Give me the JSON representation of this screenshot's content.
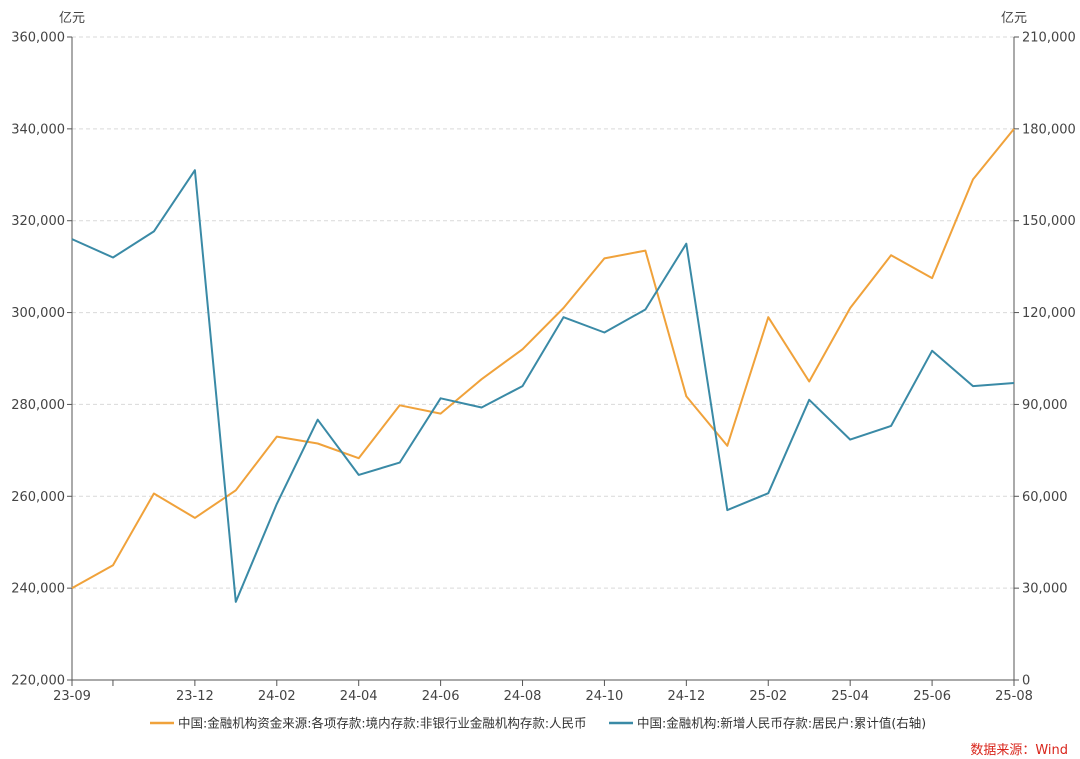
{
  "chart_data": {
    "type": "line",
    "y_unit_left": "亿元",
    "y_unit_right": "亿元",
    "ylim_left": [
      220000,
      360000
    ],
    "ylim_right": [
      0,
      210000
    ],
    "y_ticks_left": [
      "220,000",
      "240,000",
      "260,000",
      "280,000",
      "300,000",
      "320,000",
      "340,000",
      "360,000"
    ],
    "y_ticks_right": [
      "0",
      "30,000",
      "60,000",
      "90,000",
      "120,000",
      "150,000",
      "180,000",
      "210,000"
    ],
    "x": [
      "23-09",
      "23-10",
      "23-11",
      "23-12",
      "24-01",
      "24-02",
      "24-03",
      "24-04",
      "24-05",
      "24-06",
      "24-07",
      "24-08",
      "24-09",
      "24-10",
      "24-11",
      "24-12",
      "25-01",
      "25-02",
      "25-03",
      "25-04",
      "25-05",
      "25-06",
      "25-07",
      "25-08"
    ],
    "x_tick_labels": [
      "23-09",
      "",
      "",
      "23-12",
      "",
      "24-02",
      "",
      "24-04",
      "",
      "24-06",
      "",
      "24-08",
      "",
      "24-10",
      "",
      "24-12",
      "",
      "25-02",
      "",
      "25-04",
      "",
      "25-06",
      "",
      "25-08"
    ],
    "series": [
      {
        "name": "中国:金融机构资金来源:各项存款:境内存款:非银行业金融机构存款:人民币",
        "axis": "left",
        "color": "#f0a23b",
        "values": [
          240000,
          245000,
          260600,
          255300,
          261300,
          273000,
          271500,
          268300,
          279800,
          278000,
          285500,
          292000,
          301000,
          311800,
          313500,
          281800,
          271000,
          299000,
          285000,
          301000,
          312500,
          307500,
          329000,
          340000
        ]
      },
      {
        "name": "中国:金融机构:新增人民币存款:居民户:累计值(右轴)",
        "axis": "right",
        "color": "#3a8aa6",
        "values": [
          144000,
          138000,
          146500,
          166500,
          25500,
          57500,
          85000,
          67000,
          71000,
          92000,
          89000,
          96000,
          118500,
          113500,
          121000,
          142500,
          55500,
          61000,
          91500,
          78500,
          83000,
          107500,
          96000,
          97000
        ]
      }
    ]
  },
  "source": "数据来源：Wind"
}
